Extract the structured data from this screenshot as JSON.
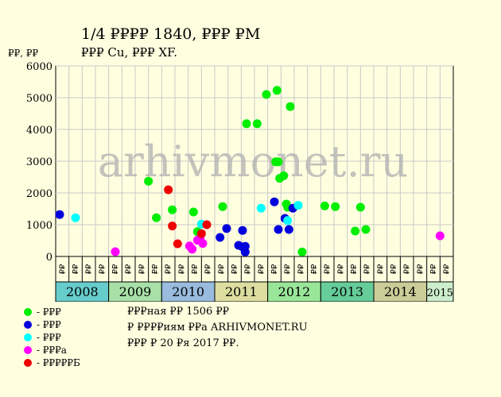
{
  "header": {
    "title": "1/4 ₽₽₽₽ 1840, ₽₽₽ ₽М",
    "subtitle": "₽₽₽ Cu, ₽₽₽ XF.",
    "y_unit": "₽₽, ₽₽"
  },
  "watermark": "arhivmonet.ru",
  "legend": [
    {
      "label": "- ₽₽₽",
      "color": "#00EE00"
    },
    {
      "label": "- ₽₽₽",
      "color": "#0000DD"
    },
    {
      "label": "- ₽₽₽",
      "color": "#00FFFF"
    },
    {
      "label": "- ₽₽₽а",
      "color": "#FF00FF"
    },
    {
      "label": "- ₽₽₽₽₽Б",
      "color": "#EE0000"
    }
  ],
  "notes": [
    "₽₽₽ная ₽₽ 1506 ₽₽",
    "₽ ₽₽₽₽иям ₽₽а ARHIVMONET.RU",
    "₽₽₽ ₽ 20 ₽я 2017 ₽₽."
  ],
  "chart_data": {
    "type": "scatter",
    "ylim": [
      0,
      6000
    ],
    "yticks": [
      0,
      1000,
      2000,
      3000,
      4000,
      5000,
      6000
    ],
    "grid": true,
    "x_unit": "quarter index (0 = Q1 2008)",
    "years": [
      {
        "label": "2008",
        "color": "#66CCCC"
      },
      {
        "label": "2009",
        "color": "#A8E0A8"
      },
      {
        "label": "2010",
        "color": "#99BBDD"
      },
      {
        "label": "2011",
        "color": "#DDDDA0"
      },
      {
        "label": "2012",
        "color": "#99E699"
      },
      {
        "label": "2013",
        "color": "#66CC99"
      },
      {
        "label": "2014",
        "color": "#CCCC99"
      },
      {
        "label": "2015",
        "color": "#CCEECC"
      }
    ],
    "quarter_labels": [
      "₽₽",
      "₽₽",
      "₽₽",
      "₽₽",
      "₽₽",
      "₽₽",
      "₽₽",
      "₽₽",
      "₽₽",
      "₽₽",
      "₽₽",
      "₽₽",
      "₽₽",
      "₽₽",
      "₽₽",
      "₽₽",
      "₽₽",
      "₽₽",
      "₽₽",
      "₽₽",
      "₽₽",
      "₽₽",
      "₽₽",
      "₽₽",
      "₽₽",
      "₽₽",
      "₽₽",
      "₽₽",
      "₽₽",
      "₽₽"
    ],
    "series": [
      {
        "color": "#00EE00",
        "points": [
          [
            7.0,
            2370
          ],
          [
            7.6,
            1220
          ],
          [
            8.8,
            1470
          ],
          [
            10.4,
            1400
          ],
          [
            10.7,
            780
          ],
          [
            12.6,
            1570
          ],
          [
            14.4,
            4180
          ],
          [
            15.2,
            4180
          ],
          [
            15.9,
            5100
          ],
          [
            16.7,
            5230
          ],
          [
            16.6,
            2980
          ],
          [
            16.8,
            2980
          ],
          [
            16.9,
            2460
          ],
          [
            17.2,
            2540
          ],
          [
            17.4,
            1650
          ],
          [
            17.5,
            1550
          ],
          [
            17.7,
            4720
          ],
          [
            18.6,
            140
          ],
          [
            20.3,
            1590
          ],
          [
            21.1,
            1570
          ],
          [
            22.6,
            800
          ],
          [
            23.0,
            1550
          ],
          [
            23.4,
            850
          ]
        ]
      },
      {
        "color": "#0000DD",
        "points": [
          [
            0.3,
            1320
          ],
          [
            12.4,
            600
          ],
          [
            12.9,
            880
          ],
          [
            13.8,
            350
          ],
          [
            14.1,
            300
          ],
          [
            14.1,
            820
          ],
          [
            14.3,
            320
          ],
          [
            14.3,
            140
          ],
          [
            16.5,
            1720
          ],
          [
            16.8,
            850
          ],
          [
            17.3,
            1200
          ],
          [
            17.6,
            850
          ],
          [
            17.9,
            1520
          ]
        ]
      },
      {
        "color": "#00FFFF",
        "points": [
          [
            1.5,
            1220
          ],
          [
            11.0,
            1020
          ],
          [
            15.5,
            1520
          ],
          [
            17.5,
            1130
          ],
          [
            18.3,
            1610
          ]
        ]
      },
      {
        "color": "#FF00FF",
        "points": [
          [
            4.5,
            150
          ],
          [
            10.1,
            330
          ],
          [
            10.3,
            230
          ],
          [
            10.7,
            510
          ],
          [
            10.9,
            570
          ],
          [
            11.1,
            410
          ],
          [
            29.0,
            650
          ]
        ]
      },
      {
        "color": "#EE0000",
        "points": [
          [
            8.5,
            2100
          ],
          [
            8.8,
            960
          ],
          [
            9.2,
            400
          ],
          [
            11.0,
            720
          ],
          [
            11.4,
            1000
          ]
        ]
      }
    ]
  }
}
